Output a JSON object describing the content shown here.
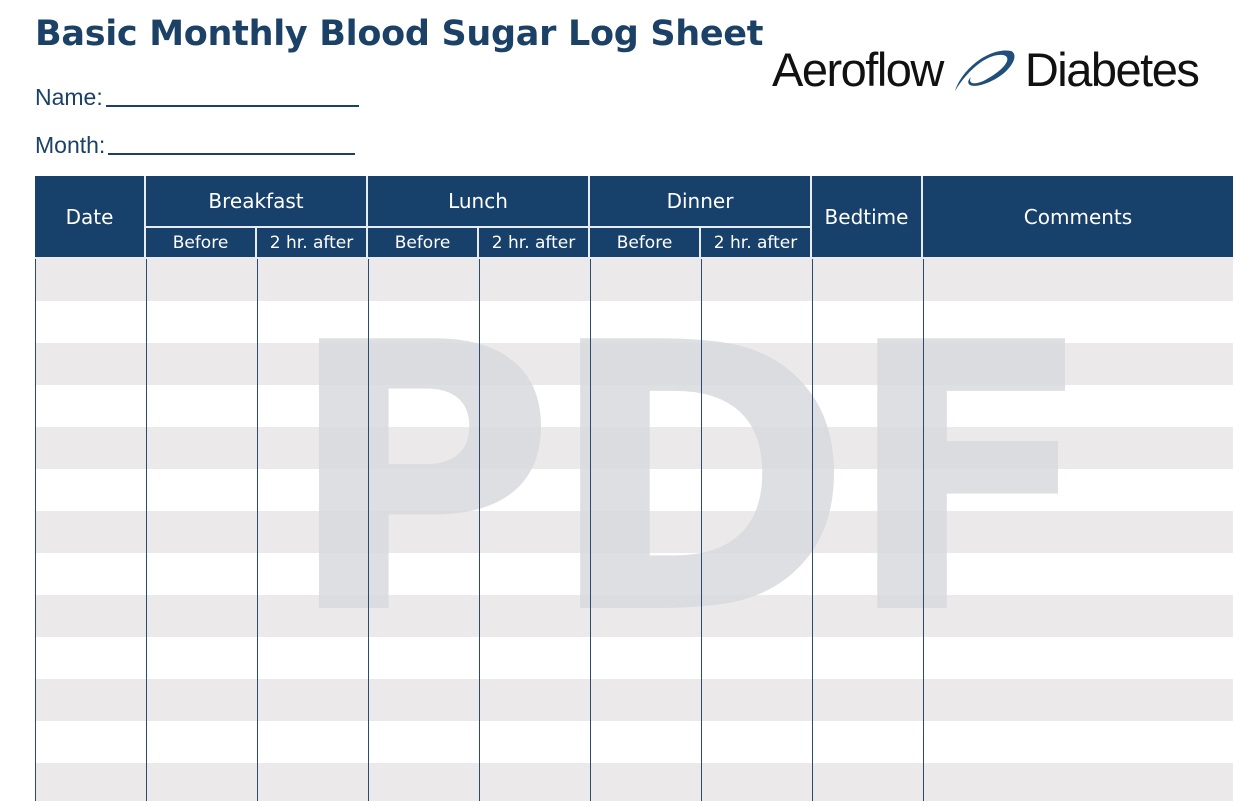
{
  "title": "Basic Monthly Blood Sugar Log Sheet",
  "fields": {
    "name_label": "Name:",
    "month_label": "Month:"
  },
  "logo": {
    "left": "Aeroflow",
    "right": "Diabetes",
    "icon": "swoosh-icon",
    "color": "#1f4f7a"
  },
  "table": {
    "headers": {
      "date": "Date",
      "breakfast": "Breakfast",
      "lunch": "Lunch",
      "dinner": "Dinner",
      "bedtime": "Bedtime",
      "comments": "Comments"
    },
    "sub": {
      "before": "Before",
      "after": "2 hr. after"
    },
    "header_color": "#17406a",
    "stripe_color": "#ebe9ea"
  },
  "watermark": "PDF"
}
